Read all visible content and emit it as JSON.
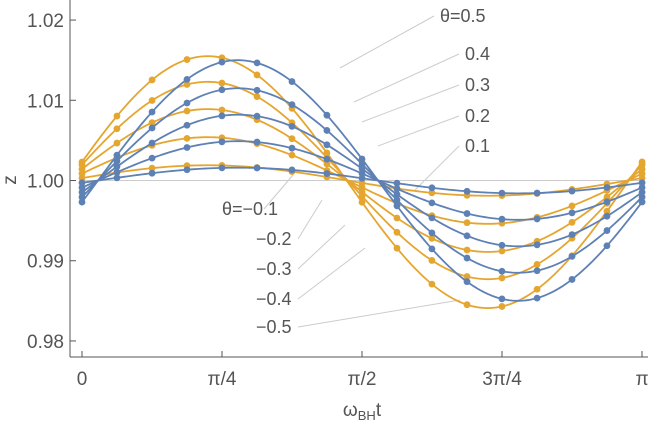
{
  "chart_data": {
    "type": "line",
    "title": "",
    "xlabel": "ω_BH t",
    "ylabel": "z",
    "xlim": [
      0,
      3.1416
    ],
    "ylim": [
      0.978,
      1.0225
    ],
    "x_ticks": [
      {
        "value": 0,
        "label": "0"
      },
      {
        "value": 0.7854,
        "label": "π/4"
      },
      {
        "value": 1.5708,
        "label": "π/2"
      },
      {
        "value": 2.3562,
        "label": "3π/4"
      },
      {
        "value": 3.1416,
        "label": "π"
      }
    ],
    "y_ticks": [
      {
        "value": 0.98,
        "label": "0.98"
      },
      {
        "value": 0.99,
        "label": "0.99"
      },
      {
        "value": 1.0,
        "label": "1.00"
      },
      {
        "value": 1.01,
        "label": "1.01"
      },
      {
        "value": 1.02,
        "label": "1.02"
      }
    ],
    "grid": false,
    "colors": {
      "positive": "#E5A630",
      "negative": "#5E81B5",
      "axis": "#555555"
    },
    "series": [
      {
        "name": "θ=0.5",
        "label": "θ=0.5",
        "sign": "positive",
        "amplitude": 0.0157,
        "phase": 0.16,
        "offset": -0.0002
      },
      {
        "name": "0.4",
        "label": "0.4",
        "sign": "positive",
        "amplitude": 0.0123,
        "phase": 0.16,
        "offset": 0
      },
      {
        "name": "0.3",
        "label": "0.3",
        "sign": "positive",
        "amplitude": 0.0089,
        "phase": 0.16,
        "offset": 0
      },
      {
        "name": "0.2",
        "label": "0.2",
        "sign": "positive",
        "amplitude": 0.0054,
        "phase": 0.16,
        "offset": 0
      },
      {
        "name": "0.1",
        "label": "0.1",
        "sign": "positive",
        "amplitude": 0.0019,
        "phase": 0.16,
        "offset": 0
      },
      {
        "name": "θ=−0.1",
        "label": "θ=−0.1",
        "sign": "negative",
        "amplitude": 0.0016,
        "phase": -0.18,
        "offset": 0
      },
      {
        "name": "−0.2",
        "label": "−0.2",
        "sign": "negative",
        "amplitude": 0.0049,
        "phase": -0.18,
        "offset": 0
      },
      {
        "name": "−0.3",
        "label": "−0.3",
        "sign": "negative",
        "amplitude": 0.0082,
        "phase": -0.18,
        "offset": 0
      },
      {
        "name": "−0.4",
        "label": "−0.4",
        "sign": "negative",
        "amplitude": 0.0115,
        "phase": -0.18,
        "offset": 0
      },
      {
        "name": "−0.5",
        "label": "−0.5",
        "sign": "negative",
        "amplitude": 0.015,
        "phase": -0.18,
        "offset": 0
      }
    ],
    "marker_x": [
      0,
      0.196,
      0.393,
      0.589,
      0.785,
      0.982,
      1.178,
      1.374,
      1.571,
      1.767,
      1.963,
      2.16,
      2.356,
      2.553,
      2.749,
      2.945,
      3.142
    ]
  }
}
